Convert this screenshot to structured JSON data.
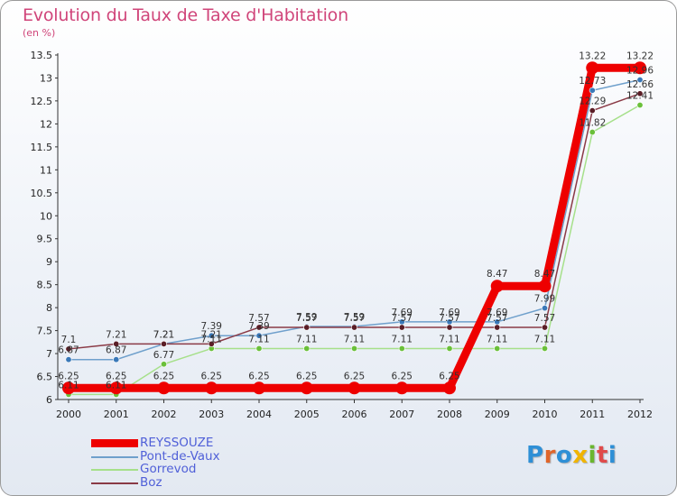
{
  "header": {
    "title": "Evolution du Taux de Taxe d'Habitation",
    "subtitle": "(en %)"
  },
  "logo": {
    "letters": [
      "P",
      "r",
      "o",
      "x",
      "i",
      "t",
      "i"
    ],
    "colors": [
      "#2e8fd6",
      "#e0652a",
      "#2e8fd6",
      "#f0b400",
      "#6ab62e",
      "#e04a4a",
      "#2e8fd6"
    ]
  },
  "chart_data": {
    "type": "line",
    "title": "Evolution du Taux de Taxe d'Habitation",
    "ylabel": "(en %)",
    "xlabel": "",
    "categories": [
      "2000",
      "2001",
      "2002",
      "2003",
      "2004",
      "2005",
      "2006",
      "2007",
      "2008",
      "2009",
      "2010",
      "2011",
      "2012"
    ],
    "ylim": [
      6,
      13.5
    ],
    "yticks": [
      "6",
      "6.5",
      "7",
      "7.5",
      "8",
      "8.5",
      "9",
      "9.5",
      "10",
      "10.5",
      "11",
      "11.5",
      "12",
      "12.5",
      "13",
      "13.5"
    ],
    "grid": false,
    "legend_position": "bottom-left",
    "series": [
      {
        "name": "REYSSOUZE",
        "color": "#ee0000",
        "marker": "#ee0000",
        "width": "thick",
        "values": [
          6.25,
          6.25,
          6.25,
          6.25,
          6.25,
          6.25,
          6.25,
          6.25,
          6.25,
          8.47,
          8.47,
          13.22,
          13.22
        ],
        "labels": [
          "6.25",
          "6.25",
          "6.25",
          "6.25",
          "6.25",
          "6.25",
          "6.25",
          "6.25",
          "6.25",
          "8.47",
          "8.47",
          "13.22",
          "13.22"
        ]
      },
      {
        "name": "Pont-de-Vaux",
        "color": "#6fa0cc",
        "marker": "#3a78b8",
        "width": "thin",
        "values": [
          6.87,
          6.87,
          7.21,
          7.39,
          7.39,
          7.59,
          7.59,
          7.69,
          7.69,
          7.69,
          7.99,
          12.73,
          12.96
        ],
        "labels": [
          "6.87",
          "6.87",
          "7.21",
          "7.39",
          "7.39",
          "7.59",
          "7.59",
          "7.69",
          "7.69",
          "7.69",
          "7.99",
          "12.73",
          "12.96"
        ]
      },
      {
        "name": "Gorrevod",
        "color": "#a6e08a",
        "marker": "#6ac03a",
        "width": "thin",
        "values": [
          6.11,
          6.11,
          6.77,
          7.11,
          7.11,
          7.11,
          7.11,
          7.11,
          7.11,
          7.11,
          7.11,
          11.82,
          12.41
        ],
        "labels": [
          "6.11",
          "6.11",
          "6.77",
          "7.11",
          "7.11",
          "7.11",
          "7.11",
          "7.11",
          "7.11",
          "7.11",
          "7.11",
          "11.82",
          "12.41"
        ]
      },
      {
        "name": "Boz",
        "color": "#8a3a46",
        "marker": "#5a1d26",
        "width": "thin",
        "values": [
          7.1,
          7.21,
          7.21,
          7.21,
          7.57,
          7.57,
          7.57,
          7.57,
          7.57,
          7.57,
          7.57,
          12.29,
          12.66
        ],
        "labels": [
          "7.1",
          "7.21",
          "7.21",
          "7.21",
          "7.57",
          "7.57",
          "7.57",
          "7.57",
          "7.57",
          "7.57",
          "7.57",
          "12.29",
          "12.66"
        ]
      }
    ]
  }
}
